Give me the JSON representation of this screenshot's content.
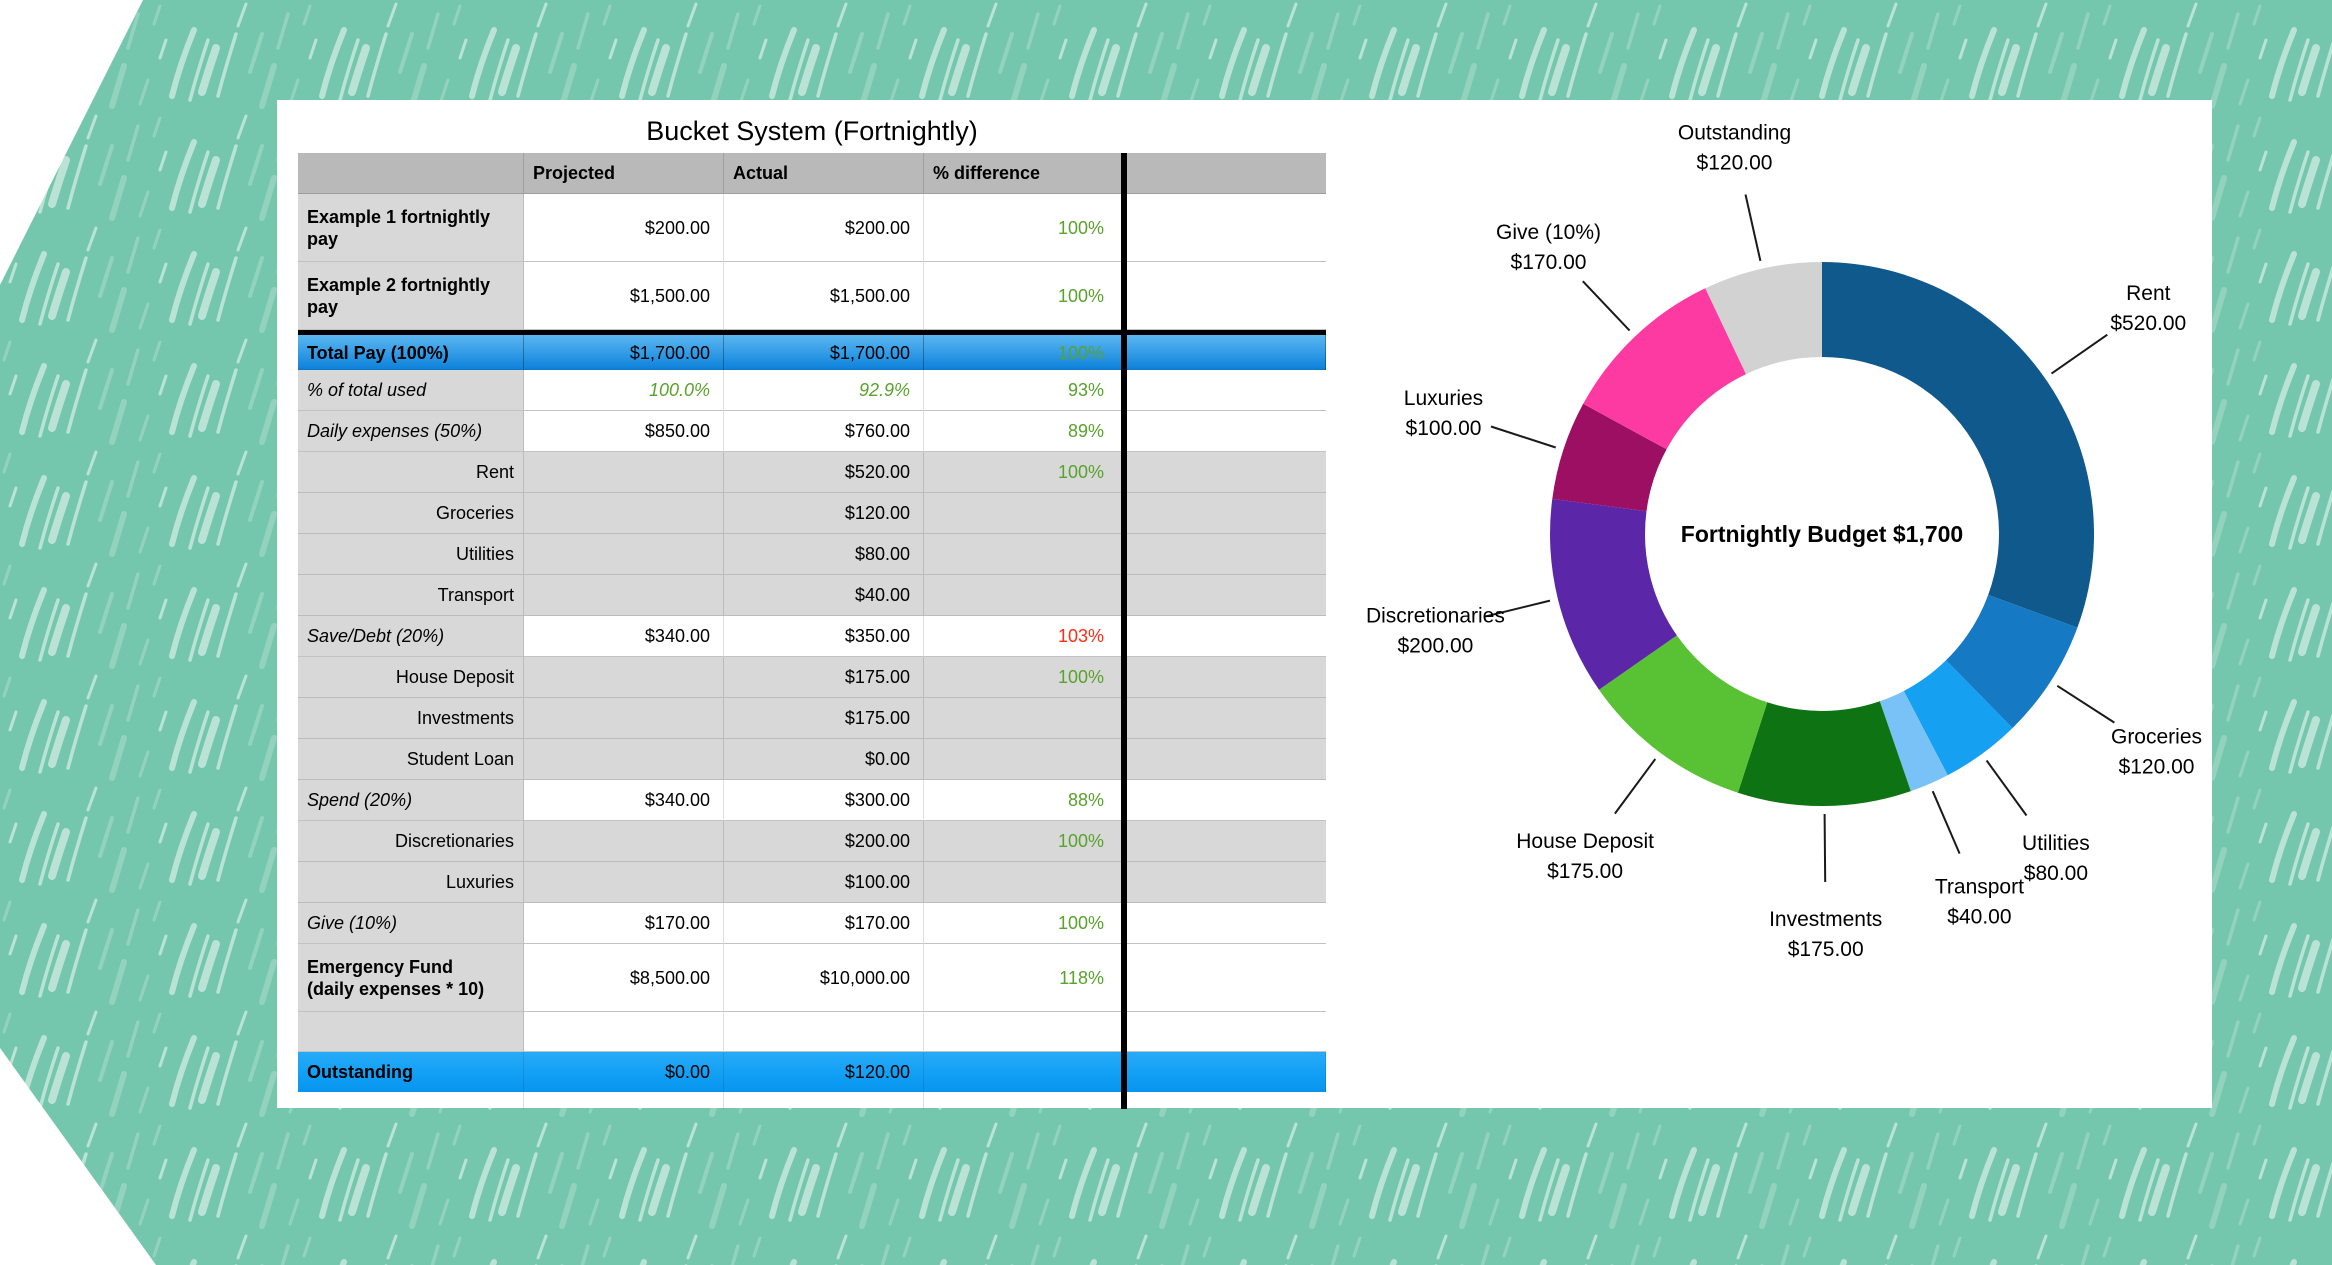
{
  "title": "Bucket System (Fortnightly)",
  "colors": {
    "board_teal": "#74c7ac",
    "hatch_stroke": "#ffffff",
    "header_gray": "#b9b9b9",
    "row_gray": "#d8d8d8",
    "total_row_blue_top": "#5cb6f0",
    "total_row_blue_bottom": "#0f82da",
    "outstanding_row_blue": "#12a0f5",
    "positive_green": "#59a22b",
    "negative_red": "#fd2c12",
    "divider_black": "#000000"
  },
  "table": {
    "columns": [
      "",
      "Projected",
      "Actual",
      "% difference",
      ""
    ],
    "rows": [
      {
        "label_lines": [
          "Example 1 fortnightly",
          "pay"
        ],
        "label": "Example 1 fortnightly pay",
        "projected": "$200.00",
        "actual": "$200.00",
        "diff": "100%",
        "label_style": "bold",
        "row_type": "normal",
        "diff_class": "green",
        "tall": true
      },
      {
        "label_lines": [
          "Example 2 fortnightly",
          "pay"
        ],
        "label": "Example 2 fortnightly pay",
        "projected": "$1,500.00",
        "actual": "$1,500.00",
        "diff": "100%",
        "label_style": "bold",
        "row_type": "normal",
        "diff_class": "green",
        "tall": true
      },
      {
        "label": "Total Pay (100%)",
        "projected": "$1,700.00",
        "actual": "$1,700.00",
        "diff": "100%",
        "label_style": "bold",
        "row_type": "total",
        "diff_class": "green"
      },
      {
        "label": "% of total used",
        "projected": "100.0%",
        "actual": "92.9%",
        "diff": "93%",
        "label_style": "italic",
        "row_type": "normal",
        "diff_class": "green",
        "value_class": "green-italic"
      },
      {
        "label": "Daily expenses (50%)",
        "projected": "$850.00",
        "actual": "$760.00",
        "diff": "89%",
        "label_style": "italic",
        "row_type": "normal",
        "diff_class": "green"
      },
      {
        "label": "Rent",
        "projected": "",
        "actual": "$520.00",
        "diff": "100%",
        "label_style": "sub",
        "row_type": "gray",
        "diff_class": "green"
      },
      {
        "label": "Groceries",
        "projected": "",
        "actual": "$120.00",
        "diff": "",
        "label_style": "sub",
        "row_type": "gray"
      },
      {
        "label": "Utilities",
        "projected": "",
        "actual": "$80.00",
        "diff": "",
        "label_style": "sub",
        "row_type": "gray"
      },
      {
        "label": "Transport",
        "projected": "",
        "actual": "$40.00",
        "diff": "",
        "label_style": "sub",
        "row_type": "gray"
      },
      {
        "label": "Save/Debt (20%)",
        "projected": "$340.00",
        "actual": "$350.00",
        "diff": "103%",
        "label_style": "italic",
        "row_type": "normal",
        "diff_class": "red"
      },
      {
        "label": "House Deposit",
        "projected": "",
        "actual": "$175.00",
        "diff": "100%",
        "label_style": "sub",
        "row_type": "gray",
        "diff_class": "green"
      },
      {
        "label": "Investments",
        "projected": "",
        "actual": "$175.00",
        "diff": "",
        "label_style": "sub",
        "row_type": "gray"
      },
      {
        "label": "Student Loan",
        "projected": "",
        "actual": "$0.00",
        "diff": "",
        "label_style": "sub",
        "row_type": "gray"
      },
      {
        "label": "Spend (20%)",
        "projected": "$340.00",
        "actual": "$300.00",
        "diff": "88%",
        "label_style": "italic",
        "row_type": "normal",
        "diff_class": "green"
      },
      {
        "label": "Discretionaries",
        "projected": "",
        "actual": "$200.00",
        "diff": "100%",
        "label_style": "sub",
        "row_type": "gray",
        "diff_class": "green"
      },
      {
        "label": "Luxuries",
        "projected": "",
        "actual": "$100.00",
        "diff": "",
        "label_style": "sub",
        "row_type": "gray"
      },
      {
        "label": "Give (10%)",
        "projected": "$170.00",
        "actual": "$170.00",
        "diff": "100%",
        "label_style": "italic",
        "row_type": "normal",
        "diff_class": "green"
      },
      {
        "label_lines": [
          "Emergency Fund",
          "(daily expenses * 10)"
        ],
        "label": "Emergency Fund (daily expenses * 10)",
        "projected": "$8,500.00",
        "actual": "$10,000.00",
        "diff": "118%",
        "label_style": "bold",
        "row_type": "normal",
        "diff_class": "green",
        "tall": true
      },
      {
        "label": "",
        "projected": "",
        "actual": "",
        "diff": "",
        "label_style": "",
        "row_type": "blank"
      },
      {
        "label": "Outstanding",
        "projected": "$0.00",
        "actual": "$120.00",
        "diff": "",
        "label_style": "bold",
        "row_type": "outstanding"
      },
      {
        "label": "",
        "projected": "",
        "actual": "",
        "diff": "",
        "label_style": "",
        "row_type": "tail"
      }
    ]
  },
  "chart_data": {
    "type": "pie",
    "subtype": "donut",
    "title": "Fortnightly Budget $1,700",
    "total": 1700,
    "start_angle_deg": 0,
    "direction": "clockwise",
    "legend_position": "outside-labels",
    "slices": [
      {
        "label": "Rent",
        "value": 520,
        "value_text": "$520.00",
        "color": "#10598c"
      },
      {
        "label": "Groceries",
        "value": 120,
        "value_text": "$120.00",
        "color": "#1579c4"
      },
      {
        "label": "Utilities",
        "value": 80,
        "value_text": "$80.00",
        "color": "#16a0f2"
      },
      {
        "label": "Transport",
        "value": 40,
        "value_text": "$40.00",
        "color": "#79c2f8"
      },
      {
        "label": "Investments",
        "value": 175,
        "value_text": "$175.00",
        "color": "#0e7312"
      },
      {
        "label": "House Deposit",
        "value": 175,
        "value_text": "$175.00",
        "color": "#59c234"
      },
      {
        "label": "Discretionaries",
        "value": 200,
        "value_text": "$200.00",
        "color": "#5b27a8"
      },
      {
        "label": "Luxuries",
        "value": 100,
        "value_text": "$100.00",
        "color": "#9c0f62"
      },
      {
        "label": "Give (10%)",
        "value": 170,
        "value_text": "$170.00",
        "color": "#fc3aa2"
      },
      {
        "label": "Outstanding",
        "value": 120,
        "value_text": "$120.00",
        "color": "#d2d2d2"
      }
    ]
  }
}
